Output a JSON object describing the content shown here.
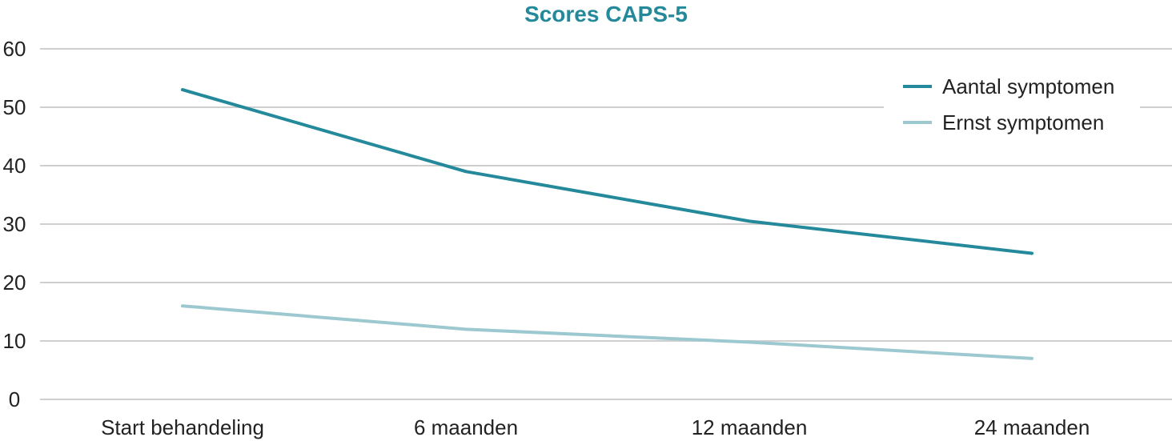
{
  "chart_data": {
    "type": "line",
    "title": "Scores CAPS-5",
    "categories": [
      "Start behandeling",
      "6 maanden",
      "12 maanden",
      "24 maanden"
    ],
    "series": [
      {
        "name": "Aantal symptomen",
        "values": [
          53,
          39,
          30.5,
          25
        ],
        "color": "#24899a"
      },
      {
        "name": "Ernst symptomen",
        "values": [
          16,
          12,
          9.8,
          7
        ],
        "color": "#9cc8d0"
      }
    ],
    "yticks": [
      "0",
      "10",
      "20",
      "30",
      "40",
      "50",
      "60"
    ],
    "ylim": [
      0,
      60
    ],
    "grid": true,
    "legend_position": "top-right",
    "colors": {
      "title": "#24899a",
      "grid": "#cfcfcf",
      "text": "#222222"
    }
  }
}
